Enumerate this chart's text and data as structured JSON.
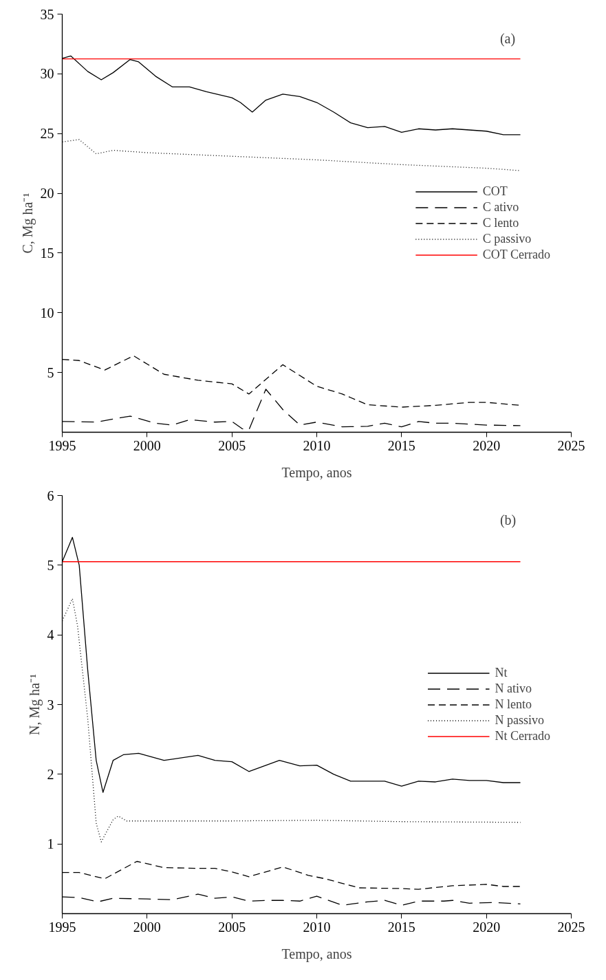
{
  "chart_data": [
    {
      "type": "line",
      "xlabel": "Tempo, anos",
      "ylabel": "C, Mg ha⁻¹",
      "annotations": [
        "(a)"
      ],
      "xlim": [
        1995,
        2025
      ],
      "xticks": [
        1995,
        2000,
        2005,
        2010,
        2015,
        2020,
        2025
      ],
      "ylim": [
        0,
        35
      ],
      "yticks": [
        5,
        10,
        15,
        20,
        25,
        30,
        35
      ],
      "grid": false,
      "legend": "right",
      "marker": "none",
      "series": [
        {
          "name": "COT",
          "color": "#000000",
          "line_style": "solid",
          "x": [
            1995,
            1995.5,
            1996.5,
            1997.3,
            1998,
            1999,
            1999.5,
            2000.5,
            2001.5,
            2002.5,
            2003.5,
            2005,
            2005.5,
            2006.2,
            2007,
            2008,
            2009,
            2010,
            2011,
            2012,
            2013,
            2014,
            2015,
            2016,
            2017,
            2018,
            2019,
            2020,
            2021,
            2022
          ],
          "values": [
            31.3,
            31.5,
            30.2,
            29.5,
            30.1,
            31.2,
            31.0,
            29.8,
            28.9,
            28.9,
            28.5,
            28.0,
            27.6,
            26.8,
            27.8,
            28.3,
            28.1,
            27.6,
            26.8,
            25.9,
            25.5,
            25.6,
            25.1,
            25.4,
            25.3,
            25.4,
            25.3,
            25.2,
            24.9,
            24.9
          ]
        },
        {
          "name": "C ativo",
          "color": "#000000",
          "line_style": "dashed",
          "x": [
            1995,
            1997,
            1999,
            2000.5,
            2001.5,
            2002.5,
            2004,
            2005,
            2005.6,
            2006,
            2007,
            2008,
            2009,
            2010,
            2011.5,
            2013,
            2014,
            2015,
            2016,
            2017,
            2018,
            2020,
            2022
          ],
          "values": [
            0.9,
            0.85,
            1.35,
            0.75,
            0.6,
            1.05,
            0.85,
            0.9,
            0.3,
            0.2,
            3.6,
            1.9,
            0.6,
            0.85,
            0.45,
            0.5,
            0.75,
            0.45,
            0.9,
            0.75,
            0.75,
            0.6,
            0.55
          ]
        },
        {
          "name": "C lento",
          "color": "#000000",
          "line_style": "dashed",
          "x": [
            1995,
            1996,
            1997.5,
            1999.2,
            2001,
            2003,
            2005,
            2006,
            2008,
            2010,
            2011.5,
            2013,
            2015,
            2017,
            2019,
            2020,
            2022
          ],
          "values": [
            6.1,
            6.0,
            5.2,
            6.4,
            4.85,
            4.35,
            4.05,
            3.2,
            5.65,
            3.85,
            3.2,
            2.3,
            2.1,
            2.25,
            2.5,
            2.5,
            2.25
          ]
        },
        {
          "name": "C passivo",
          "color": "#000000",
          "line_style": "dotted",
          "x": [
            1995,
            1996,
            1997,
            1998,
            2000,
            2005,
            2010,
            2015,
            2020,
            2022
          ],
          "values": [
            24.3,
            24.5,
            23.3,
            23.6,
            23.4,
            23.1,
            22.8,
            22.4,
            22.1,
            21.9
          ]
        },
        {
          "name": "COT Cerrado",
          "color": "#ff0000",
          "line_style": "solid",
          "x": [
            1995,
            2022
          ],
          "values": [
            31.25,
            31.25
          ]
        }
      ]
    },
    {
      "type": "line",
      "xlabel": "Tempo, anos",
      "ylabel": "N, Mg ha⁻¹",
      "annotations": [
        "(b)"
      ],
      "xlim": [
        1995,
        2025
      ],
      "xticks": [
        1995,
        2000,
        2005,
        2010,
        2015,
        2020,
        2025
      ],
      "ylim": [
        0,
        6
      ],
      "yticks": [
        1,
        2,
        3,
        4,
        5,
        6
      ],
      "grid": false,
      "legend": "right",
      "marker": "none",
      "series": [
        {
          "name": "Nt",
          "color": "#000000",
          "line_style": "solid",
          "x": [
            1995,
            1995.6,
            1996,
            1996.5,
            1997,
            1997.4,
            1998,
            1998.6,
            1999.5,
            2001,
            2003,
            2004,
            2005,
            2006,
            2007.8,
            2009,
            2010,
            2011,
            2012,
            2014,
            2015,
            2016,
            2017,
            2018,
            2019,
            2020,
            2021,
            2022
          ],
          "values": [
            5.05,
            5.4,
            5.0,
            3.5,
            2.2,
            1.74,
            2.2,
            2.28,
            2.3,
            2.2,
            2.27,
            2.2,
            2.18,
            2.04,
            2.2,
            2.12,
            2.13,
            2.0,
            1.9,
            1.9,
            1.83,
            1.9,
            1.89,
            1.93,
            1.91,
            1.91,
            1.88,
            1.88
          ]
        },
        {
          "name": "N ativo",
          "color": "#000000",
          "line_style": "dashed",
          "x": [
            1995,
            1996,
            1997.1,
            1998,
            2000,
            2001.5,
            2003,
            2004,
            2005,
            2006,
            2007,
            2008,
            2009,
            2010,
            2011.5,
            2013,
            2014,
            2015,
            2016,
            2017.5,
            2018,
            2019,
            2020.5,
            2022
          ],
          "values": [
            0.24,
            0.23,
            0.17,
            0.22,
            0.21,
            0.2,
            0.28,
            0.22,
            0.24,
            0.18,
            0.19,
            0.19,
            0.18,
            0.25,
            0.12,
            0.17,
            0.19,
            0.12,
            0.18,
            0.18,
            0.19,
            0.15,
            0.16,
            0.14
          ]
        },
        {
          "name": "N lento",
          "color": "#000000",
          "line_style": "dashed",
          "x": [
            1995,
            1996,
            1997.5,
            1999.4,
            2001,
            2003,
            2004,
            2005,
            2006,
            2008,
            2009.5,
            2010.5,
            2012.5,
            2015,
            2016,
            2018,
            2020,
            2021,
            2022
          ],
          "values": [
            0.59,
            0.59,
            0.5,
            0.75,
            0.66,
            0.65,
            0.65,
            0.6,
            0.53,
            0.67,
            0.55,
            0.5,
            0.37,
            0.36,
            0.35,
            0.4,
            0.42,
            0.39,
            0.39
          ]
        },
        {
          "name": "N passivo",
          "color": "#000000",
          "line_style": "dotted",
          "x": [
            1995,
            1995.6,
            1995.9,
            1996.5,
            1997,
            1997.3,
            1998,
            1998.3,
            1998.8,
            2000,
            2005,
            2010,
            2015,
            2022
          ],
          "values": [
            4.2,
            4.52,
            4.13,
            2.8,
            1.3,
            1.03,
            1.35,
            1.4,
            1.33,
            1.33,
            1.33,
            1.34,
            1.32,
            1.31
          ]
        },
        {
          "name": "Nt Cerrado",
          "color": "#ff0000",
          "line_style": "solid",
          "x": [
            1995,
            2022
          ],
          "values": [
            5.05,
            5.05
          ]
        }
      ]
    }
  ]
}
